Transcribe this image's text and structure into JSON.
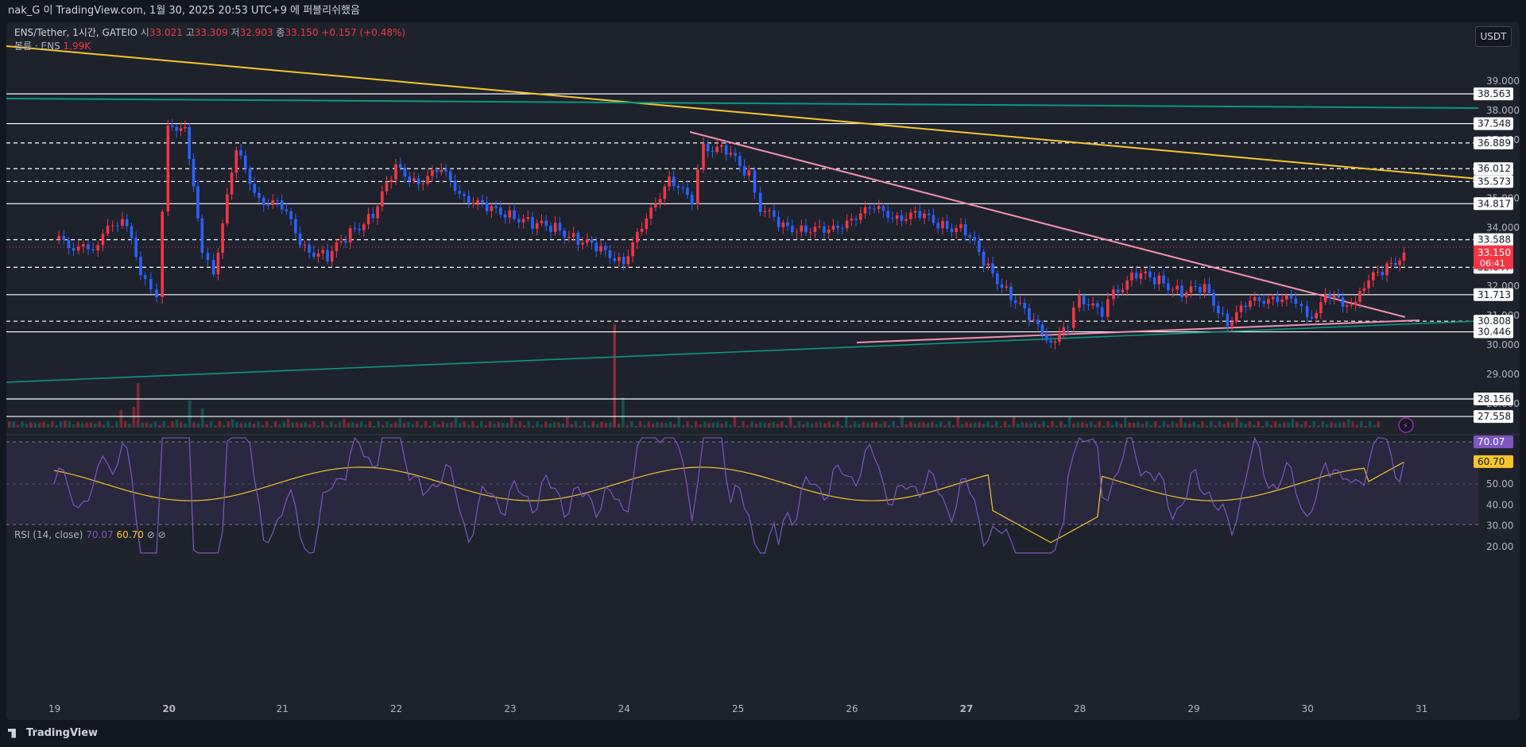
{
  "topbar": {
    "text": "nak_G 이 TradingView.com, 1월 30, 2025 20:53 UTC+9 에 퍼블리쉬했음"
  },
  "legend": {
    "symbol": "ENS/Tether, 1시간, GATEIO",
    "open_label": "시",
    "open": "33.021",
    "high_label": "고",
    "high": "33.309",
    "low_label": "저",
    "low": "32.903",
    "close_label": "종",
    "close": "33.150",
    "change": "+0.157 (+0.48%)",
    "volume_label": "볼륨 · ENS",
    "volume": "1.99K"
  },
  "currency_button": "USDT",
  "rsi_legend": {
    "label": "RSI (14, close)",
    "rsi": "70.07",
    "ma": "60.70",
    "icons": [
      "eye-off-icon",
      "eye-off-icon"
    ]
  },
  "price_axis_ticks": [
    "39.000",
    "38.000",
    "37.000",
    "35.000",
    "34.000",
    "32.000",
    "31.000",
    "30.000",
    "29.000",
    "28.000"
  ],
  "levels": [
    {
      "value": "38.563",
      "style": "solid"
    },
    {
      "value": "37.548",
      "style": "solid"
    },
    {
      "value": "36.889",
      "style": "dashed"
    },
    {
      "value": "36.012",
      "style": "dashed"
    },
    {
      "value": "35.573",
      "style": "dashed"
    },
    {
      "value": "34.817",
      "style": "solid"
    },
    {
      "value": "33.588",
      "style": "dashed"
    },
    {
      "value": "32.647",
      "style": "dashed"
    },
    {
      "value": "31.713",
      "style": "solid"
    },
    {
      "value": "30.808",
      "style": "dashed"
    },
    {
      "value": "30.446",
      "style": "solid"
    },
    {
      "value": "28.156",
      "style": "solid"
    },
    {
      "value": "27.558",
      "style": "solid"
    }
  ],
  "current_price": {
    "value": "33.150",
    "countdown": "06:41"
  },
  "rsi_axis_ticks": [
    "50.00",
    "40.00",
    "30.00",
    "20.00"
  ],
  "rsi_badges": {
    "rsi": "70.07",
    "ma": "60.70"
  },
  "time_axis": [
    "19",
    "20",
    "21",
    "22",
    "23",
    "24",
    "25",
    "26",
    "27",
    "28",
    "29",
    "30",
    "31"
  ],
  "colors": {
    "up": "#f23645",
    "down": "#2962ff",
    "rsi": "#7e57c2",
    "rsi_ma": "#f7c52b",
    "background": "#1e222d"
  },
  "branding": {
    "logo_text": "TradingView"
  }
}
